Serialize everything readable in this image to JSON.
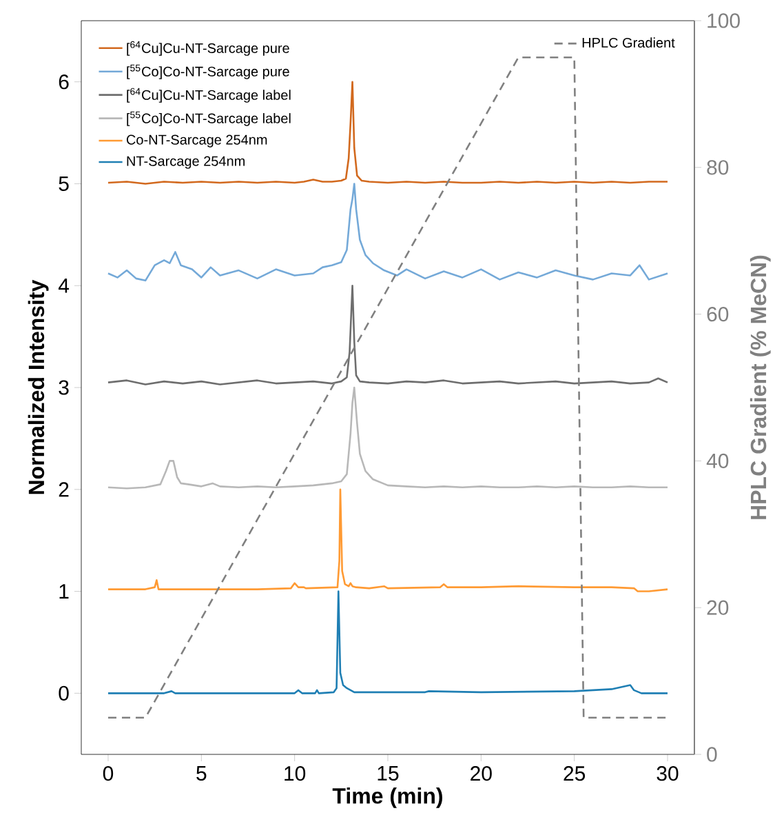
{
  "chart_data": {
    "type": "line",
    "xlabel": "Time (min)",
    "ylabel": "Normalized Intensity",
    "y2label": "HPLC Gradient (% MeCN)",
    "xlim": [
      -1.44,
      31.44
    ],
    "ylim": [
      -0.6,
      6.6
    ],
    "y2lim": [
      0,
      100
    ],
    "xticks": [
      0,
      5,
      10,
      15,
      20,
      25,
      30
    ],
    "yticks": [
      0,
      1,
      2,
      3,
      4,
      5,
      6
    ],
    "y2ticks": [
      0,
      20,
      40,
      60,
      80,
      100
    ],
    "legend": "top left",
    "series": [
      {
        "name": "[$^{64}$Cu]Cu-NT-Sarcage pure",
        "color": "#d2691e",
        "x": [
          0,
          1,
          2,
          3,
          4,
          5,
          6,
          7,
          8,
          9,
          10,
          10.5,
          11,
          11.5,
          12,
          12.5,
          12.75,
          12.9,
          13.0,
          13.1,
          13.2,
          13.35,
          13.6,
          14,
          15,
          16,
          17,
          18,
          19,
          20,
          21,
          22,
          23,
          24,
          25,
          26,
          27,
          28,
          29,
          30
        ],
        "values": [
          5.01,
          5.02,
          5.0,
          5.02,
          5.01,
          5.02,
          5.01,
          5.02,
          5.01,
          5.02,
          5.01,
          5.02,
          5.04,
          5.02,
          5.02,
          5.03,
          5.05,
          5.25,
          5.6,
          6.0,
          5.35,
          5.08,
          5.03,
          5.02,
          5.01,
          5.02,
          5.01,
          5.02,
          5.01,
          5.01,
          5.02,
          5.01,
          5.02,
          5.01,
          5.02,
          5.01,
          5.02,
          5.01,
          5.02,
          5.02
        ]
      },
      {
        "name": "[$^{55}$Co]Co-NT-Sarcage pure",
        "color": "#74a9d8",
        "x": [
          0,
          0.5,
          1,
          1.5,
          2,
          2.5,
          3,
          3.3,
          3.6,
          3.9,
          4.5,
          5,
          5.5,
          6,
          7,
          8,
          9,
          10,
          11,
          11.5,
          12,
          12.5,
          12.8,
          13.0,
          13.1,
          13.2,
          13.3,
          13.5,
          13.8,
          14.2,
          14.8,
          15.5,
          16,
          17,
          18,
          19,
          20,
          21,
          22,
          23,
          24,
          25,
          26,
          27,
          28,
          28.5,
          29,
          30
        ],
        "values": [
          4.12,
          4.08,
          4.15,
          4.07,
          4.05,
          4.2,
          4.25,
          4.22,
          4.33,
          4.2,
          4.16,
          4.08,
          4.18,
          4.1,
          4.15,
          4.07,
          4.16,
          4.1,
          4.12,
          4.18,
          4.2,
          4.23,
          4.35,
          4.75,
          4.85,
          5.0,
          4.75,
          4.45,
          4.3,
          4.22,
          4.15,
          4.1,
          4.16,
          4.07,
          4.14,
          4.08,
          4.16,
          4.06,
          4.13,
          4.08,
          4.15,
          4.1,
          4.06,
          4.12,
          4.1,
          4.2,
          4.06,
          4.12
        ]
      },
      {
        "name": "[$^{64}$Cu]Cu-NT-Sarcage label",
        "color": "#6e6e6e",
        "x": [
          0,
          1,
          2,
          3,
          4,
          5,
          6,
          7,
          8,
          9,
          10,
          11,
          12,
          12.5,
          12.8,
          12.95,
          13.1,
          13.2,
          13.3,
          13.5,
          14,
          15,
          16,
          17,
          18,
          19,
          20,
          21,
          22,
          23,
          24,
          25,
          26,
          27,
          28,
          29,
          29.5,
          30
        ],
        "values": [
          3.05,
          3.07,
          3.03,
          3.06,
          3.04,
          3.06,
          3.03,
          3.05,
          3.07,
          3.04,
          3.05,
          3.06,
          3.04,
          3.06,
          3.1,
          3.35,
          4.0,
          3.45,
          3.12,
          3.06,
          3.05,
          3.04,
          3.06,
          3.05,
          3.07,
          3.04,
          3.05,
          3.06,
          3.04,
          3.05,
          3.06,
          3.04,
          3.05,
          3.06,
          3.04,
          3.05,
          3.09,
          3.05
        ]
      },
      {
        "name": "[$^{55}$Co]Co-NT-Sarcage label",
        "color": "#b8b8b8",
        "x": [
          0,
          1,
          2,
          2.8,
          3.1,
          3.3,
          3.5,
          3.7,
          3.9,
          4.3,
          5,
          5.6,
          6,
          7,
          8,
          9,
          10,
          11,
          12,
          12.5,
          12.8,
          13.0,
          13.1,
          13.2,
          13.35,
          13.5,
          13.8,
          14.2,
          15,
          16,
          17,
          18,
          19,
          20,
          21,
          22,
          23,
          24,
          25,
          26,
          27,
          28,
          29,
          30
        ],
        "values": [
          2.02,
          2.01,
          2.02,
          2.05,
          2.18,
          2.28,
          2.28,
          2.12,
          2.06,
          2.05,
          2.03,
          2.06,
          2.03,
          2.02,
          2.03,
          2.02,
          2.03,
          2.04,
          2.06,
          2.08,
          2.15,
          2.55,
          2.85,
          3.0,
          2.65,
          2.35,
          2.18,
          2.1,
          2.04,
          2.03,
          2.02,
          2.03,
          2.02,
          2.03,
          2.02,
          2.02,
          2.03,
          2.02,
          2.03,
          2.02,
          2.02,
          2.03,
          2.02,
          2.02
        ]
      },
      {
        "name": "Co-NT-Sarcage 254nm",
        "color": "#ff9a33",
        "x": [
          0,
          2,
          2.5,
          2.6,
          2.7,
          3,
          5,
          8,
          9.8,
          10,
          10.2,
          10.5,
          10.6,
          12.3,
          12.4,
          12.45,
          12.55,
          12.7,
          12.9,
          13.0,
          13.1,
          13.3,
          14,
          14.8,
          15,
          17.8,
          18,
          18.2,
          20,
          22,
          25,
          27,
          28.2,
          28.4,
          29,
          30
        ],
        "values": [
          1.02,
          1.02,
          1.04,
          1.11,
          1.02,
          1.02,
          1.02,
          1.02,
          1.03,
          1.08,
          1.04,
          1.04,
          1.03,
          1.04,
          1.3,
          2.0,
          1.2,
          1.07,
          1.05,
          1.08,
          1.05,
          1.04,
          1.03,
          1.05,
          1.03,
          1.04,
          1.07,
          1.04,
          1.04,
          1.05,
          1.04,
          1.04,
          1.03,
          1.0,
          1.0,
          1.02
        ]
      },
      {
        "name": "NT-Sarcage 254nm",
        "color": "#1f7fb4",
        "x": [
          0,
          3,
          3.4,
          3.6,
          10,
          10.2,
          10.4,
          11.1,
          11.2,
          11.3,
          12.1,
          12.25,
          12.35,
          12.45,
          12.6,
          12.8,
          13.0,
          13.2,
          15,
          17,
          17.2,
          20,
          25,
          27,
          28,
          28.2,
          28.6,
          30
        ],
        "values": [
          0.0,
          0.0,
          0.02,
          0.0,
          0.0,
          0.03,
          0.0,
          0.0,
          0.03,
          0.0,
          0.01,
          0.05,
          1.0,
          0.2,
          0.08,
          0.05,
          0.03,
          0.01,
          0.01,
          0.01,
          0.02,
          0.01,
          0.02,
          0.04,
          0.08,
          0.03,
          0.0,
          0.0
        ]
      },
      {
        "name": "HPLC Gradient",
        "color": "#808080",
        "axis": "y2",
        "line_style": "dashed",
        "x": [
          0,
          2,
          22,
          25,
          25.5,
          30
        ],
        "values": [
          5,
          5,
          95,
          95,
          5,
          5
        ]
      }
    ]
  }
}
